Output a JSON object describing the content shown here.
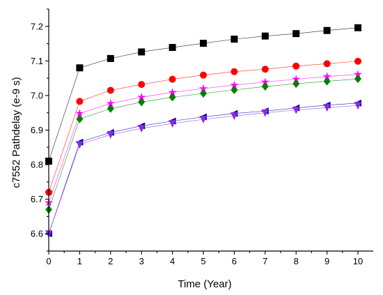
{
  "chart_data": {
    "type": "line",
    "title": "",
    "xlabel": "Time (Year)",
    "ylabel": "c7552 Pathdelay (e-9 s)",
    "xlim": [
      0,
      10
    ],
    "ylim": [
      6.55,
      7.25
    ],
    "x_ticks": [
      "0",
      "1",
      "2",
      "3",
      "4",
      "5",
      "6",
      "7",
      "8",
      "9",
      "10"
    ],
    "y_ticks": [
      "6.6",
      "6.7",
      "6.8",
      "6.9",
      "7.0",
      "7.1",
      "7.2"
    ],
    "grid": false,
    "legend": "none",
    "x": [
      0,
      1,
      2,
      3,
      4,
      5,
      6,
      7,
      8,
      9,
      10
    ],
    "series": [
      {
        "color": "#000000",
        "marker": "square",
        "values": [
          6.81,
          7.08,
          7.107,
          7.126,
          7.139,
          7.151,
          7.163,
          7.172,
          7.179,
          7.188,
          7.196
        ]
      },
      {
        "color": "#ff0000",
        "marker": "circle",
        "values": [
          6.72,
          6.983,
          7.015,
          7.032,
          7.047,
          7.059,
          7.069,
          7.076,
          7.085,
          7.092,
          7.099
        ]
      },
      {
        "color": "#ff00ff",
        "marker": "star",
        "values": [
          6.69,
          6.948,
          6.977,
          6.995,
          7.009,
          7.02,
          7.03,
          7.039,
          7.047,
          7.055,
          7.061
        ]
      },
      {
        "color": "#008000",
        "marker": "diamond",
        "values": [
          6.67,
          6.932,
          6.962,
          6.981,
          6.995,
          7.006,
          7.016,
          7.026,
          7.034,
          7.041,
          7.048
        ]
      },
      {
        "color": "#0000a0",
        "marker": "left-triangle",
        "values": [
          6.6,
          6.865,
          6.893,
          6.912,
          6.926,
          6.938,
          6.948,
          6.955,
          6.964,
          6.972,
          6.978
        ]
      },
      {
        "color": "#8a2be2",
        "marker": "down-triangle",
        "values": [
          6.6,
          6.858,
          6.887,
          6.905,
          6.919,
          6.931,
          6.941,
          6.95,
          6.958,
          6.965,
          6.971
        ]
      }
    ]
  }
}
